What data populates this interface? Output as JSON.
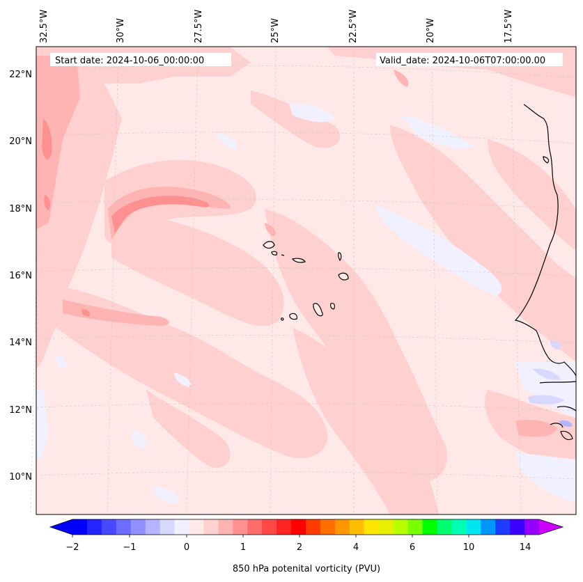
{
  "header": {
    "start_date": "Start date: 2024-10-06_00:00:00",
    "valid_date": "Valid_date: 2024-10-06T07:00:00.00"
  },
  "longitude_labels": [
    "32.5°W",
    "30°W",
    "27.5°W",
    "25°W",
    "22.5°W",
    "20°W",
    "17.5°W"
  ],
  "latitude_labels": [
    "22°N",
    "20°N",
    "18°N",
    "16°N",
    "14°N",
    "12°N",
    "10°N"
  ],
  "colorbar": {
    "title": "850 hPa potenital vorticity (PVU)",
    "tick_labels": [
      "−2",
      "−1",
      "0",
      "1",
      "2",
      "4",
      "6",
      "10",
      "14"
    ],
    "colors": [
      "#0000ff",
      "#2424ff",
      "#4848ff",
      "#6c6cff",
      "#9090ff",
      "#b4b4ff",
      "#d8d8ff",
      "#f0f0ff",
      "#ffe8e8",
      "#ffd0d0",
      "#ffb4b4",
      "#ff9090",
      "#ff6c6c",
      "#ff4848",
      "#ff2424",
      "#ff0000",
      "#ff3c00",
      "#ff6e00",
      "#ff9600",
      "#ffbe00",
      "#ffe600",
      "#e6f000",
      "#b4ff00",
      "#78ff00",
      "#00ff00",
      "#00ff6e",
      "#00ffb4",
      "#00e6f0",
      "#0096ff",
      "#1e3cff",
      "#3c00ff",
      "#9600ff"
    ],
    "extend_colors": {
      "low": "#0000ff",
      "high": "#cc00ff"
    }
  },
  "map_colors": {
    "background": "#ffe8e8",
    "light_pink": "#ffd0d0",
    "medium_pink": "#ffb4b4",
    "strong_pink": "#ff9090",
    "pale_blue": "#f0f0ff",
    "light_blue": "#d8d8ff",
    "blue": "#b4b4ff",
    "coastline": "#000000"
  }
}
